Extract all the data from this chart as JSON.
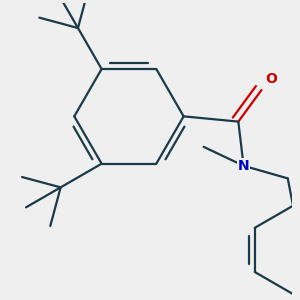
{
  "background_color": "#efefef",
  "bond_color": "#1a3a4a",
  "oxygen_color": "#cc0000",
  "nitrogen_color": "#0000cc",
  "line_width": 1.6,
  "figsize": [
    3.0,
    3.0
  ],
  "dpi": 100
}
